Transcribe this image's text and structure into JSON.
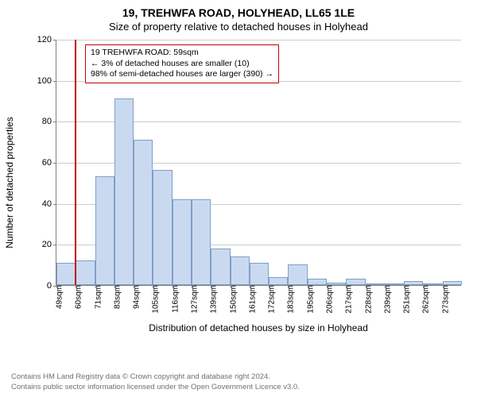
{
  "header": {
    "title_main": "19, TREHWFA ROAD, HOLYHEAD, LL65 1LE",
    "title_sub": "Size of property relative to detached houses in Holyhead"
  },
  "chart": {
    "type": "histogram",
    "y_axis_label": "Number of detached properties",
    "x_axis_label": "Distribution of detached houses by size in Holyhead",
    "ylim": [
      0,
      120
    ],
    "ytick_step": 20,
    "ytick_labels": [
      "0",
      "20",
      "40",
      "60",
      "80",
      "100",
      "120"
    ],
    "xtick_labels": [
      "49sqm",
      "60sqm",
      "71sqm",
      "83sqm",
      "94sqm",
      "105sqm",
      "116sqm",
      "127sqm",
      "139sqm",
      "150sqm",
      "161sqm",
      "172sqm",
      "183sqm",
      "195sqm",
      "206sqm",
      "217sqm",
      "228sqm",
      "239sqm",
      "251sqm",
      "262sqm",
      "273sqm"
    ],
    "values": [
      11,
      12,
      53,
      91,
      71,
      56,
      42,
      42,
      18,
      14,
      11,
      4,
      10,
      3,
      1,
      3,
      0,
      0,
      2,
      0,
      2
    ],
    "bar_fill": "#c9daf0",
    "bar_border": "#7f9fc9",
    "grid_color": "#cccccc",
    "axis_color": "#808080",
    "background_color": "#ffffff",
    "marker": {
      "position_index": 1,
      "color": "#c00000"
    },
    "annotation": {
      "line1": "19 TREHWFA ROAD: 59sqm",
      "line2": "← 3% of detached houses are smaller (10)",
      "line3": "98% of semi-detached houses are larger (390) →",
      "border_color": "#c00000",
      "background": "#ffffff",
      "fontsize": 10.5
    }
  },
  "footer": {
    "line1": "Contains HM Land Registry data © Crown copyright and database right 2024.",
    "line2": "Contains public sector information licensed under the Open Government Licence v3.0."
  }
}
